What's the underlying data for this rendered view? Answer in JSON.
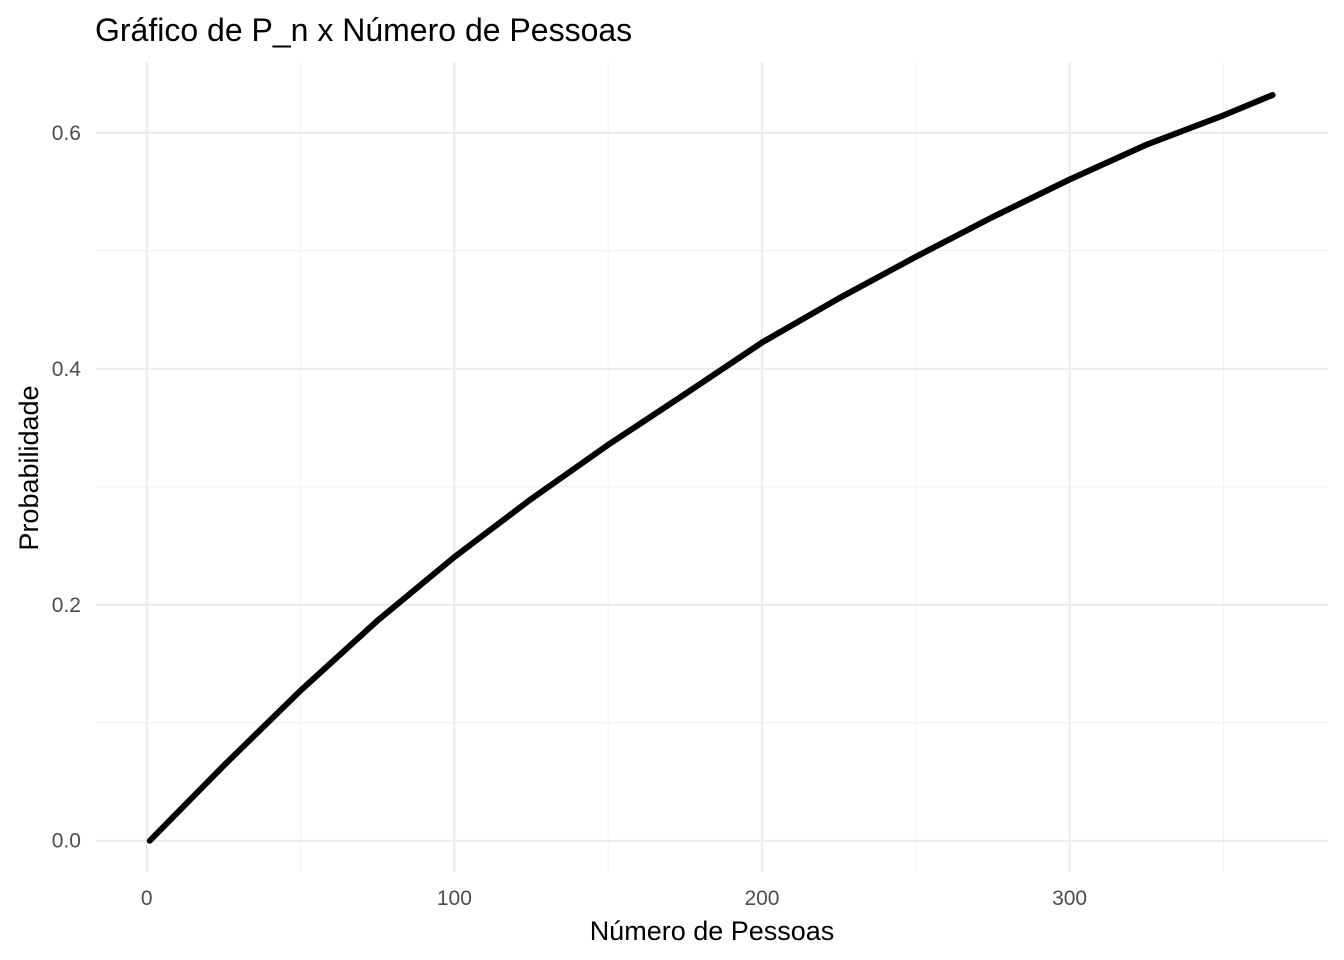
{
  "chart_data": {
    "type": "line",
    "title": "Gráfico de P_n x Número de Pessoas",
    "xlabel": "Número de Pessoas",
    "ylabel": "Probabilidade",
    "xlim": [
      -16.5,
      384
    ],
    "ylim": [
      -0.0265,
      0.66
    ],
    "x_ticks": [
      0,
      100,
      200,
      300
    ],
    "x_tick_labels": [
      "0",
      "100",
      "200",
      "300"
    ],
    "x_minor_ticks": [
      50,
      150,
      250,
      350
    ],
    "y_ticks": [
      0.0,
      0.2,
      0.4,
      0.6
    ],
    "y_tick_labels": [
      "0.0",
      "0.2",
      "0.4",
      "0.6"
    ],
    "y_minor_ticks": [
      0.1,
      0.3,
      0.5
    ],
    "grid": true,
    "series": [
      {
        "color": "#000000",
        "x": [
          1,
          25,
          50,
          75,
          100,
          125,
          150,
          175,
          200,
          225,
          250,
          275,
          300,
          325,
          350,
          366
        ],
        "values": [
          0.0,
          0.0637,
          0.1273,
          0.1866,
          0.2405,
          0.2897,
          0.3356,
          0.3786,
          0.4223,
          0.4597,
          0.4949,
          0.5286,
          0.5604,
          0.5899,
          0.6147,
          0.632
        ]
      }
    ]
  }
}
